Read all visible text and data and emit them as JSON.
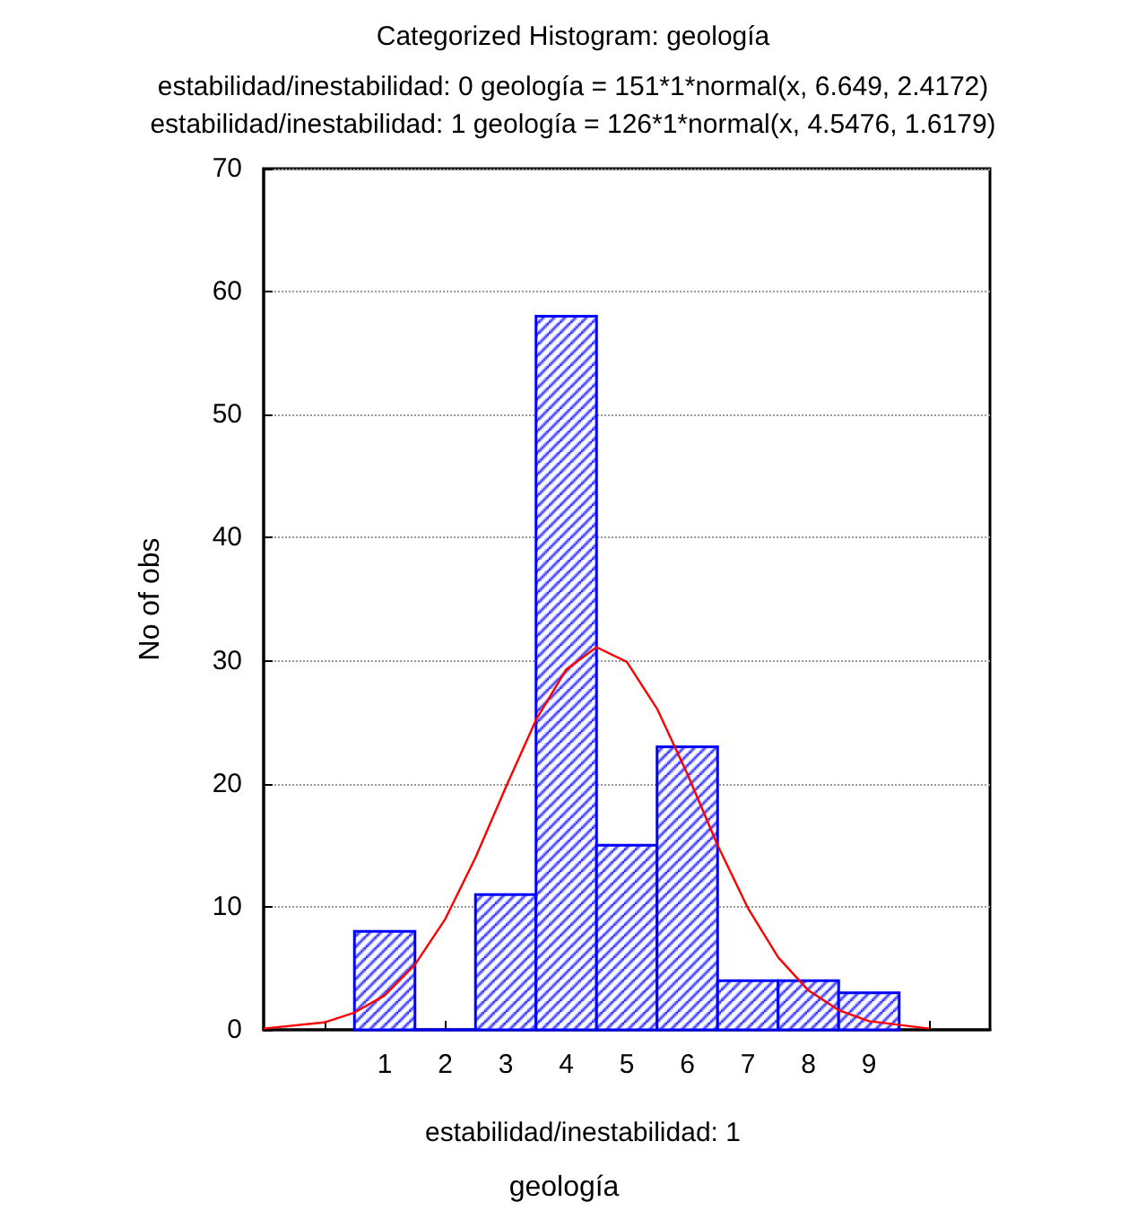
{
  "chart_data": {
    "type": "histogram",
    "title": "Categorized Histogram: geología",
    "subtitle": "estabilidad/inestabilidad: 0 geología = 151*1*normal(x, 6.649, 2.4172)\nestabilidad/inestabilidad: 1 geología = 126*1*normal(x, 4.5476, 1.6179)",
    "xlabel": "geología",
    "ylabel": "No of obs",
    "annotations": [
      "estabilidad/inestabilidad: 1"
    ],
    "bins": [
      0.5,
      1.5,
      2.5,
      3.5,
      4.5,
      5.5,
      6.5,
      7.5,
      8.5,
      9.5
    ],
    "series": [
      {
        "color": "#0000ff",
        "values": [
          8,
          0,
          11,
          58,
          15,
          23,
          4,
          4,
          3
        ]
      },
      {
        "type": "line",
        "color": "#ff0000",
        "x": [
          -1,
          0,
          0.5,
          1,
          1.5,
          2,
          2.5,
          3,
          3.5,
          4,
          4.5,
          5,
          5.5,
          6,
          6.5,
          7,
          7.5,
          8,
          8.5,
          9,
          10
        ],
        "values": [
          0.1,
          0.6,
          1.4,
          2.8,
          5.3,
          9.0,
          14.0,
          19.7,
          25.2,
          29.3,
          31.1,
          29.9,
          26.1,
          20.8,
          15.0,
          9.9,
          5.9,
          3.2,
          1.6,
          0.7,
          0.1
        ]
      }
    ],
    "xlim": [
      -1,
      11
    ],
    "xticks": [
      {
        "value": 0,
        "label": null
      },
      1,
      2,
      3,
      4,
      5,
      6,
      7,
      8,
      9,
      {
        "value": 10,
        "label": null
      }
    ],
    "ylim": [
      0,
      70
    ],
    "yticks": [
      0,
      10,
      20,
      30,
      40,
      50,
      60,
      70
    ],
    "grid": "y",
    "marker": "none",
    "line_style": "solid"
  }
}
